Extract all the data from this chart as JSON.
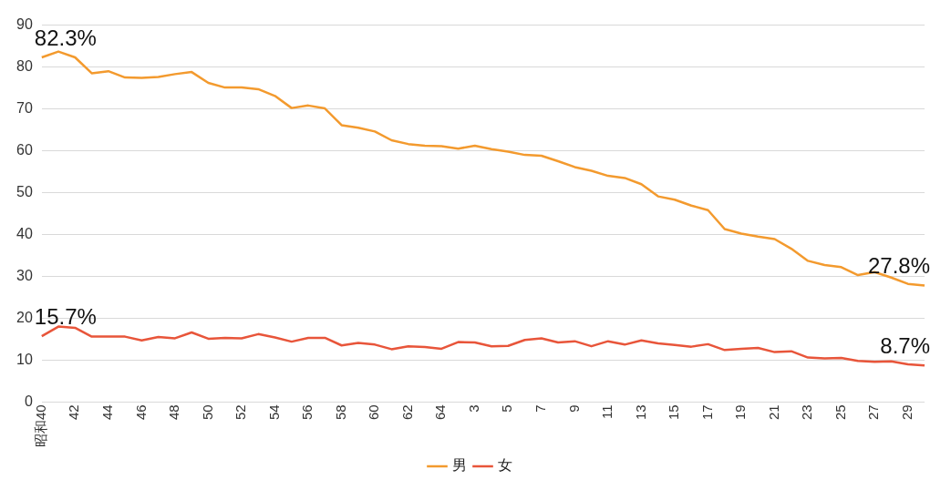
{
  "chart_data": {
    "type": "line",
    "categories": [
      "昭和40",
      null,
      "42",
      null,
      "44",
      null,
      "46",
      null,
      "48",
      null,
      "50",
      null,
      "52",
      null,
      "54",
      null,
      "56",
      null,
      "58",
      null,
      "60",
      null,
      "62",
      null,
      "64",
      null,
      "3",
      null,
      "5",
      null,
      "7",
      null,
      "9",
      null,
      "11",
      null,
      "13",
      null,
      "15",
      null,
      "17",
      null,
      "19",
      null,
      "21",
      null,
      "23",
      null,
      "25",
      null,
      "27",
      null,
      "29",
      null
    ],
    "series": [
      {
        "name": "男",
        "color": "#f39a2e",
        "values": [
          82.3,
          83.7,
          82.3,
          78.5,
          79.0,
          77.5,
          77.4,
          77.6,
          78.3,
          78.8,
          76.2,
          75.1,
          75.1,
          74.7,
          73.1,
          70.2,
          70.8,
          70.1,
          66.1,
          65.5,
          64.6,
          62.5,
          61.6,
          61.2,
          61.1,
          60.5,
          61.2,
          60.4,
          59.8,
          59.0,
          58.8,
          57.5,
          56.1,
          55.2,
          54.0,
          53.5,
          52.0,
          49.1,
          48.3,
          46.9,
          45.8,
          41.3,
          40.2,
          39.5,
          38.9,
          36.6,
          33.7,
          32.7,
          32.2,
          30.3,
          31.0,
          29.7,
          28.2,
          27.8
        ],
        "value_labels": [
          "82.3%",
          null,
          null,
          null,
          null,
          null,
          null,
          null,
          null,
          null,
          null,
          null,
          null,
          null,
          null,
          null,
          null,
          null,
          null,
          null,
          null,
          null,
          null,
          null,
          null,
          null,
          null,
          null,
          null,
          null,
          null,
          null,
          null,
          null,
          null,
          null,
          null,
          null,
          null,
          null,
          null,
          null,
          null,
          null,
          null,
          null,
          null,
          null,
          null,
          null,
          null,
          null,
          null,
          "27.8%"
        ]
      },
      {
        "name": "女",
        "color": "#e8553a",
        "values": [
          15.7,
          18.0,
          17.7,
          15.6,
          15.6,
          15.6,
          14.7,
          15.5,
          15.2,
          16.6,
          15.1,
          15.3,
          15.2,
          16.2,
          15.4,
          14.4,
          15.3,
          15.3,
          13.5,
          14.1,
          13.7,
          12.6,
          13.3,
          13.1,
          12.7,
          14.3,
          14.2,
          13.3,
          13.4,
          14.8,
          15.2,
          14.2,
          14.5,
          13.3,
          14.5,
          13.7,
          14.7,
          14.0,
          13.6,
          13.2,
          13.8,
          12.4,
          12.7,
          12.9,
          11.9,
          12.1,
          10.6,
          10.4,
          10.5,
          9.8,
          9.6,
          9.7,
          9.0,
          8.7
        ],
        "value_labels": [
          "15.7%",
          null,
          null,
          null,
          null,
          null,
          null,
          null,
          null,
          null,
          null,
          null,
          null,
          null,
          null,
          null,
          null,
          null,
          null,
          null,
          null,
          null,
          null,
          null,
          null,
          null,
          null,
          null,
          null,
          null,
          null,
          null,
          null,
          null,
          null,
          null,
          null,
          null,
          null,
          null,
          null,
          null,
          null,
          null,
          null,
          null,
          null,
          null,
          null,
          null,
          null,
          null,
          null,
          "8.7%"
        ]
      }
    ],
    "ylim": [
      0,
      90
    ],
    "yticks": [
      0,
      10,
      20,
      30,
      40,
      50,
      60,
      70,
      80,
      90
    ],
    "grid": "y",
    "legend": "bottom",
    "marker": "none"
  }
}
